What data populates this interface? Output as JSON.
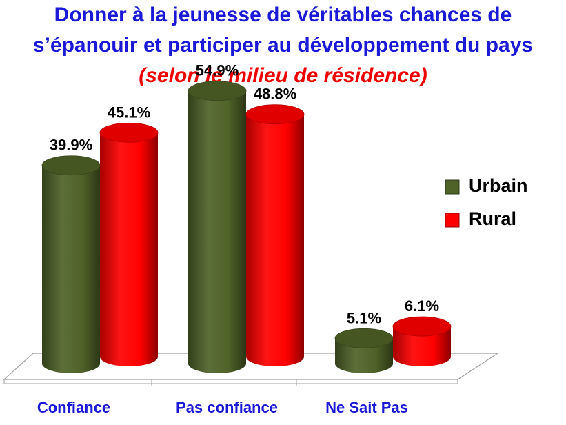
{
  "title": {
    "line1": "Donner à la jeunesse de véritables chances de",
    "line2": "s’épanouir et participer au développement du pays",
    "subtitle": "(selon le milieu de résidence)",
    "color": "#1a1ad6",
    "subtitle_color": "#ee0000"
  },
  "chart_data": {
    "type": "bar",
    "style": "3d-cylinder",
    "title": "Donner à la jeunesse de véritables chances de s’épanouir et participer au développement du pays",
    "subtitle": "(selon le milieu de résidence)",
    "categories": [
      "Confiance",
      "Pas confiance",
      "Ne Sait Pas"
    ],
    "series": [
      {
        "name": "Urbain",
        "values": [
          39.9,
          54.9,
          5.1
        ],
        "labels": [
          "39.9%",
          "54.9%",
          "5.1%"
        ],
        "color": "#4f6228"
      },
      {
        "name": "Rural",
        "values": [
          45.1,
          48.8,
          6.1
        ],
        "labels": [
          "45.1%",
          "48.8%",
          "6.1%"
        ],
        "color": "#ff0000"
      }
    ],
    "ylim": [
      0,
      60
    ],
    "unit": "%",
    "grid": false,
    "legend_position": "right",
    "category_label_color": "#1a1ad6"
  }
}
